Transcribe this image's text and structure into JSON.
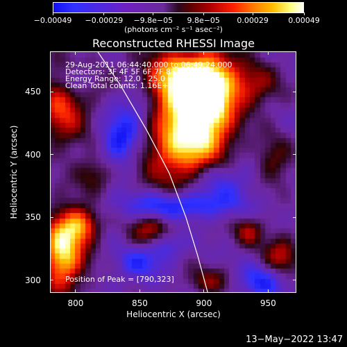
{
  "colorbar": {
    "tick_labels": [
      "−0.00049",
      "−0.00029",
      "−9.8e−05",
      "9.8e−05",
      "0.00029",
      "0.00049"
    ],
    "values": [
      -0.00049,
      -0.00029,
      -9.8e-05,
      9.8e-05,
      0.00029,
      0.00049
    ],
    "range": [
      -0.00049,
      0.00049
    ],
    "unit_label": "(photons cm⁻² s⁻¹ asec⁻²)",
    "colors": [
      "#1010f0",
      "#7020c0",
      "#2a0a20",
      "#b00000",
      "#ff7a00",
      "#ffffff"
    ]
  },
  "chart_data": {
    "type": "heatmap",
    "title": "Reconstructed RHESSI Image",
    "xlabel": "Heliocentric X (arcsec)",
    "ylabel": "Heliocentric Y (arcsec)",
    "xlim": [
      780,
      972
    ],
    "ylim": [
      290,
      482
    ],
    "x_ticks": [
      800,
      850,
      900,
      950
    ],
    "y_ticks": [
      300,
      350,
      400,
      450
    ],
    "annotations": [
      "29-Aug-2011 06:44:40.000 to 06:49:24.000",
      "Detectors: 3F 4F 5F 6F 7F 8F, All 9",
      "Energy Range: 12.0 - 25.0 keV",
      "Clean    Total counts: 1.16E+04"
    ],
    "peak_label": "Position of Peak = [790,323]",
    "peak_position": [
      790,
      323
    ],
    "limb_curve": [
      [
        817,
        482
      ],
      [
        835,
        455
      ],
      [
        855,
        420
      ],
      [
        873,
        385
      ],
      [
        886,
        350
      ],
      [
        895,
        320
      ],
      [
        903,
        290
      ]
    ],
    "sources": [
      {
        "x": 885,
        "y": 415,
        "sx": 22,
        "sy": 30,
        "amp": 1.0
      },
      {
        "x": 880,
        "y": 460,
        "sx": 30,
        "sy": 16,
        "amp": 0.85
      },
      {
        "x": 905,
        "y": 445,
        "sx": 14,
        "sy": 25,
        "amp": 0.7
      },
      {
        "x": 790,
        "y": 323,
        "sx": 12,
        "sy": 22,
        "amp": 1.0
      },
      {
        "x": 805,
        "y": 345,
        "sx": 10,
        "sy": 10,
        "amp": 0.6
      },
      {
        "x": 790,
        "y": 438,
        "sx": 14,
        "sy": 22,
        "amp": 0.6
      },
      {
        "x": 815,
        "y": 385,
        "sx": 10,
        "sy": 10,
        "amp": 0.35
      },
      {
        "x": 860,
        "y": 338,
        "sx": 12,
        "sy": 10,
        "amp": 0.55
      },
      {
        "x": 940,
        "y": 455,
        "sx": 14,
        "sy": 12,
        "amp": 0.35
      },
      {
        "x": 955,
        "y": 395,
        "sx": 10,
        "sy": 14,
        "amp": 0.35
      },
      {
        "x": 960,
        "y": 320,
        "sx": 10,
        "sy": 12,
        "amp": 0.5
      },
      {
        "x": 935,
        "y": 340,
        "sx": 8,
        "sy": 8,
        "amp": 0.45
      },
      {
        "x": 905,
        "y": 300,
        "sx": 14,
        "sy": 8,
        "amp": 0.35
      },
      {
        "x": 870,
        "y": 330,
        "sx": 10,
        "sy": 8,
        "amp": -0.5
      },
      {
        "x": 880,
        "y": 360,
        "sx": 30,
        "sy": 8,
        "amp": -0.6
      },
      {
        "x": 850,
        "y": 445,
        "sx": 14,
        "sy": 20,
        "amp": -0.55
      },
      {
        "x": 835,
        "y": 410,
        "sx": 10,
        "sy": 14,
        "amp": -0.5
      },
      {
        "x": 910,
        "y": 380,
        "sx": 18,
        "sy": 12,
        "amp": -0.45
      },
      {
        "x": 945,
        "y": 300,
        "sx": 14,
        "sy": 10,
        "amp": -0.45
      },
      {
        "x": 850,
        "y": 315,
        "sx": 12,
        "sy": 10,
        "amp": -0.4
      },
      {
        "x": 800,
        "y": 460,
        "sx": 8,
        "sy": 8,
        "amp": -0.35
      }
    ]
  },
  "footer": {
    "timestamp": "13−May−2022 13:47"
  }
}
